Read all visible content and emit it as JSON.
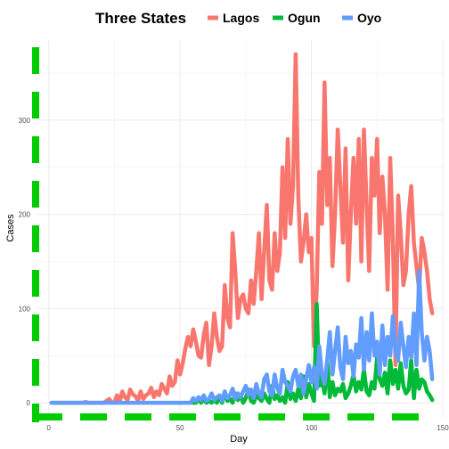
{
  "chart_data": {
    "type": "line",
    "title": "",
    "xlabel": "Day",
    "ylabel": "Cases",
    "xlim": [
      -5,
      150
    ],
    "ylim": [
      -15,
      385
    ],
    "x_ticks": [
      0,
      50,
      100,
      150
    ],
    "y_ticks": [
      0,
      100,
      200,
      300
    ],
    "grid": true,
    "legend": {
      "position": "top",
      "title": "Three States"
    },
    "axis_line_color": "#00CC00",
    "series": [
      {
        "name": "Lagos",
        "color": "#F8766D",
        "x": [
          1,
          2,
          3,
          4,
          5,
          6,
          7,
          8,
          9,
          10,
          11,
          12,
          13,
          14,
          15,
          16,
          17,
          18,
          19,
          20,
          21,
          22,
          23,
          24,
          25,
          26,
          27,
          28,
          29,
          30,
          31,
          32,
          33,
          34,
          35,
          36,
          37,
          38,
          39,
          40,
          41,
          42,
          43,
          44,
          45,
          46,
          47,
          48,
          49,
          50,
          51,
          52,
          53,
          54,
          55,
          56,
          57,
          58,
          59,
          60,
          61,
          62,
          63,
          64,
          65,
          66,
          67,
          68,
          69,
          70,
          71,
          72,
          73,
          74,
          75,
          76,
          77,
          78,
          79,
          80,
          81,
          82,
          83,
          84,
          85,
          86,
          87,
          88,
          89,
          90,
          91,
          92,
          93,
          94,
          95,
          96,
          97,
          98,
          99,
          100,
          101,
          102,
          103,
          104,
          105,
          106,
          107,
          108,
          109,
          110,
          111,
          112,
          113,
          114,
          115,
          116,
          117,
          118,
          119,
          120,
          121,
          122,
          123,
          124,
          125,
          126,
          127,
          128,
          129,
          130,
          131,
          132,
          133,
          134,
          135,
          136,
          137,
          138,
          139,
          140,
          141,
          142,
          143,
          144,
          145,
          146
        ],
        "y": [
          0,
          0,
          0,
          0,
          0,
          0,
          0,
          0,
          0,
          0,
          0,
          0,
          0,
          1,
          0,
          0,
          0,
          0,
          0,
          0,
          0,
          2,
          4,
          0,
          1,
          8,
          1,
          12,
          6,
          3,
          14,
          9,
          7,
          2,
          12,
          4,
          8,
          10,
          16,
          6,
          12,
          8,
          20,
          15,
          10,
          28,
          18,
          22,
          45,
          30,
          42,
          58,
          70,
          60,
          78,
          65,
          50,
          48,
          72,
          85,
          40,
          60,
          95,
          70,
          55,
          60,
          125,
          90,
          80,
          180,
          140,
          90,
          110,
          115,
          100,
          95,
          130,
          105,
          140,
          180,
          110,
          160,
          210,
          130,
          120,
          180,
          140,
          160,
          250,
          175,
          280,
          190,
          230,
          370,
          220,
          150,
          170,
          200,
          160,
          175,
          60,
          120,
          245,
          190,
          340,
          210,
          260,
          145,
          200,
          290,
          230,
          170,
          270,
          130,
          200,
          260,
          190,
          280,
          150,
          290,
          210,
          140,
          260,
          220,
          280,
          180,
          240,
          200,
          120,
          260,
          175,
          40,
          220,
          180,
          125,
          140,
          200,
          230,
          170,
          145,
          120,
          175,
          160,
          140,
          110,
          95
        ]
      },
      {
        "name": "Ogun",
        "color": "#00BA38",
        "x": [
          55,
          56,
          57,
          58,
          59,
          60,
          61,
          62,
          63,
          64,
          65,
          66,
          67,
          68,
          69,
          70,
          71,
          72,
          73,
          74,
          75,
          76,
          77,
          78,
          79,
          80,
          81,
          82,
          83,
          84,
          85,
          86,
          87,
          88,
          89,
          90,
          91,
          92,
          93,
          94,
          95,
          96,
          97,
          98,
          99,
          100,
          101,
          102,
          103,
          104,
          105,
          106,
          107,
          108,
          109,
          110,
          111,
          112,
          113,
          114,
          115,
          116,
          117,
          118,
          119,
          120,
          121,
          122,
          123,
          124,
          125,
          126,
          127,
          128,
          129,
          130,
          131,
          132,
          133,
          134,
          135,
          136,
          137,
          138,
          139,
          140,
          141,
          142,
          143,
          144,
          145,
          146
        ],
        "y": [
          0,
          0,
          5,
          0,
          4,
          0,
          2,
          0,
          3,
          0,
          6,
          0,
          12,
          2,
          4,
          0,
          10,
          3,
          8,
          0,
          5,
          14,
          2,
          0,
          8,
          5,
          2,
          10,
          4,
          0,
          18,
          4,
          8,
          2,
          6,
          0,
          22,
          4,
          10,
          2,
          15,
          5,
          28,
          6,
          20,
          10,
          2,
          105,
          18,
          25,
          10,
          45,
          6,
          22,
          8,
          15,
          12,
          20,
          5,
          10,
          18,
          30,
          12,
          22,
          14,
          35,
          12,
          8,
          22,
          15,
          48,
          25,
          18,
          32,
          10,
          45,
          20,
          35,
          15,
          42,
          18,
          10,
          14,
          45,
          5,
          35,
          15,
          25,
          22,
          12,
          8,
          3
        ]
      },
      {
        "name": "Oyo",
        "color": "#619CFF",
        "x": [
          1,
          2,
          3,
          4,
          5,
          6,
          7,
          8,
          9,
          10,
          11,
          12,
          13,
          14,
          15,
          16,
          17,
          18,
          19,
          20,
          21,
          22,
          23,
          24,
          25,
          26,
          27,
          28,
          29,
          30,
          31,
          32,
          33,
          34,
          35,
          36,
          37,
          38,
          39,
          40,
          41,
          42,
          43,
          44,
          45,
          46,
          47,
          48,
          49,
          50,
          51,
          52,
          53,
          54,
          55,
          56,
          57,
          58,
          59,
          60,
          61,
          62,
          63,
          64,
          65,
          66,
          67,
          68,
          69,
          70,
          71,
          72,
          73,
          74,
          75,
          76,
          77,
          78,
          79,
          80,
          81,
          82,
          83,
          84,
          85,
          86,
          87,
          88,
          89,
          90,
          91,
          92,
          93,
          94,
          95,
          96,
          97,
          98,
          99,
          100,
          101,
          102,
          103,
          104,
          105,
          106,
          107,
          108,
          109,
          110,
          111,
          112,
          113,
          114,
          115,
          116,
          117,
          118,
          119,
          120,
          121,
          122,
          123,
          124,
          125,
          126,
          127,
          128,
          129,
          130,
          131,
          132,
          133,
          134,
          135,
          136,
          137,
          138,
          139,
          140,
          141,
          142,
          143,
          144,
          145,
          146
        ],
        "y": [
          0,
          0,
          0,
          0,
          0,
          0,
          0,
          0,
          0,
          0,
          0,
          0,
          0,
          0,
          0,
          0,
          0,
          0,
          0,
          0,
          0,
          0,
          0,
          0,
          0,
          0,
          0,
          0,
          0,
          0,
          0,
          0,
          0,
          0,
          0,
          0,
          0,
          0,
          0,
          0,
          0,
          0,
          0,
          0,
          0,
          0,
          0,
          0,
          0,
          0,
          0,
          0,
          0,
          0,
          5,
          2,
          6,
          3,
          8,
          2,
          4,
          10,
          3,
          6,
          8,
          2,
          12,
          5,
          8,
          15,
          4,
          10,
          6,
          12,
          18,
          8,
          14,
          5,
          20,
          10,
          6,
          25,
          30,
          12,
          8,
          30,
          15,
          10,
          35,
          22,
          18,
          12,
          28,
          35,
          18,
          30,
          10,
          25,
          40,
          22,
          38,
          15,
          60,
          30,
          20,
          45,
          75,
          30,
          55,
          80,
          38,
          25,
          70,
          42,
          55,
          28,
          62,
          48,
          90,
          35,
          75,
          45,
          95,
          50,
          65,
          30,
          82,
          40,
          70,
          50,
          92,
          55,
          45,
          85,
          60,
          38,
          70,
          48,
          95,
          40,
          140,
          75,
          45,
          70,
          55,
          25
        ]
      }
    ]
  }
}
